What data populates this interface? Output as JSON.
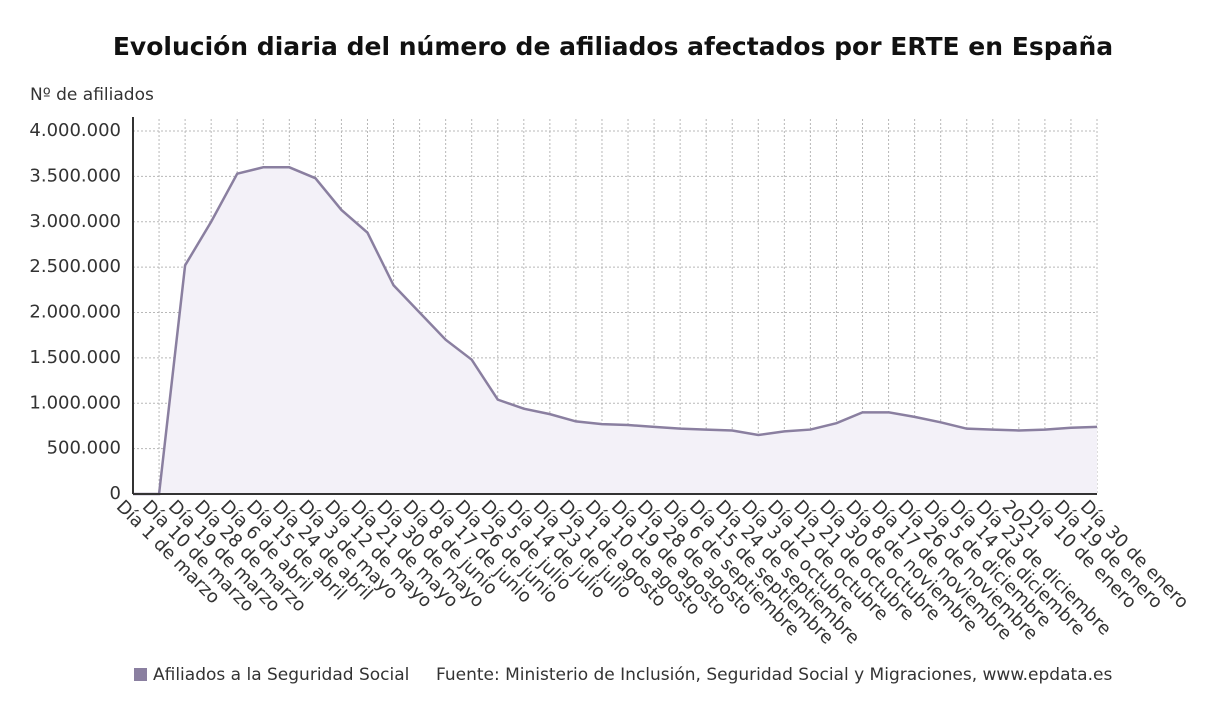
{
  "chart_data": {
    "type": "area",
    "title": "Evolución diaria del número de afiliados afectados por ERTE en España",
    "y_label": "Nº de afiliados",
    "source": "Fuente: Ministerio de Inclusión, Seguridad Social y Migraciones, www.epdata.es",
    "categories": [
      "Día 1 de marzo",
      "Día 10 de marzo",
      "Día 19 de marzo",
      "Día 28 de marzo",
      "Día 6 de abril",
      "Día 15 de abril",
      "Día 24 de abril",
      "Día 3 de mayo",
      "Día 12 de mayo",
      "Día 21 de mayo",
      "Día 30 de mayo",
      "Día 8 de junio",
      "Día 17 de junio",
      "Día 26 de junio",
      "Día 5 de julio",
      "Día 14 de julio",
      "Día 23 de julio",
      "Día 1 de agosto",
      "Día 10 de agosto",
      "Día 19 de agosto",
      "Día 28 de agosto",
      "Día 6 de septiembre",
      "Día 15 de septiembre",
      "Día 24 de septiembre",
      "Día 3 de octubre",
      "Día 12 de octubre",
      "Día 21 de octubre",
      "Día 30 de octubre",
      "Día 8 de noviembre",
      "Día 17 de noviembre",
      "Día 26 de noviembre",
      "Día 5 de diciembre",
      "Día 14 de diciembre",
      "Día 23 de diciembre",
      "2021",
      "Día 10 de enero",
      "Día 19 de enero",
      "Día 30 de enero"
    ],
    "series": [
      {
        "name": "Afiliados a la Seguridad Social",
        "color": "#8a7fa0",
        "values": [
          0,
          0,
          2520000,
          3000000,
          3530000,
          3600000,
          3600000,
          3480000,
          3130000,
          2880000,
          2300000,
          2000000,
          1700000,
          1480000,
          1040000,
          940000,
          880000,
          800000,
          770000,
          760000,
          740000,
          720000,
          710000,
          700000,
          650000,
          690000,
          710000,
          780000,
          900000,
          900000,
          850000,
          790000,
          720000,
          710000,
          700000,
          710000,
          730000,
          740000
        ]
      }
    ],
    "ylim": [
      0,
      4000000
    ],
    "yticks": [
      0,
      {
        "value": 500000,
        "label": "500.000"
      },
      {
        "value": 1000000,
        "label": "1.000.000"
      },
      {
        "value": 1500000,
        "label": "1.500.000"
      },
      {
        "value": 2000000,
        "label": "2.000.000"
      },
      {
        "value": 2500000,
        "label": "2.500.000"
      },
      {
        "value": 3000000,
        "label": "3.000.000"
      },
      {
        "value": 3500000,
        "label": "3.500.000"
      },
      {
        "value": 4000000,
        "label": "4.000.000"
      }
    ],
    "grid": true
  }
}
